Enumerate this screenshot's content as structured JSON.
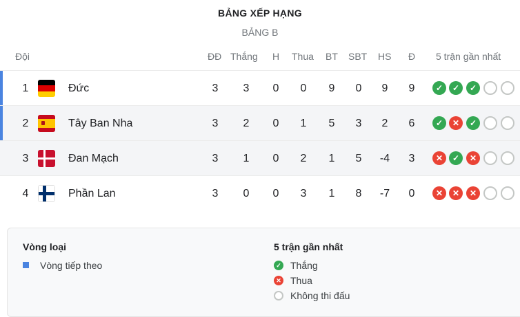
{
  "title": "BẢNG XẾP HẠNG",
  "group": "BẢNG B",
  "columns": {
    "team": "Đội",
    "played": "ĐĐ",
    "won": "Thắng",
    "drawn": "H",
    "lost": "Thua",
    "gf": "BT",
    "ga": "SBT",
    "gd": "HS",
    "pts": "Đ",
    "form": "5 trận gần nhất"
  },
  "rows": [
    {
      "pos": "1",
      "team": "Đức",
      "flag": "germany",
      "played": "3",
      "won": "3",
      "drawn": "0",
      "lost": "0",
      "gf": "9",
      "ga": "0",
      "gd": "9",
      "pts": "9",
      "form": [
        "W",
        "W",
        "W",
        "N",
        "N"
      ],
      "qualified": true
    },
    {
      "pos": "2",
      "team": "Tây Ban Nha",
      "flag": "spain",
      "played": "3",
      "won": "2",
      "drawn": "0",
      "lost": "1",
      "gf": "5",
      "ga": "3",
      "gd": "2",
      "pts": "6",
      "form": [
        "W",
        "L",
        "W",
        "N",
        "N"
      ],
      "qualified": true
    },
    {
      "pos": "3",
      "team": "Đan Mạch",
      "flag": "denmark",
      "played": "3",
      "won": "1",
      "drawn": "0",
      "lost": "2",
      "gf": "1",
      "ga": "5",
      "gd": "-4",
      "pts": "3",
      "form": [
        "L",
        "W",
        "L",
        "N",
        "N"
      ],
      "qualified": false
    },
    {
      "pos": "4",
      "team": "Phần Lan",
      "flag": "finland",
      "played": "3",
      "won": "0",
      "drawn": "0",
      "lost": "3",
      "gf": "1",
      "ga": "8",
      "gd": "-7",
      "pts": "0",
      "form": [
        "L",
        "L",
        "L",
        "N",
        "N"
      ],
      "qualified": false
    }
  ],
  "legend": {
    "qual_title": "Vòng loại",
    "qual_item": "Vòng tiếp theo",
    "form_title": "5 trận gần nhất",
    "win": "Thắng",
    "loss": "Thua",
    "none": "Không thi đấu"
  },
  "colors": {
    "qualified": "#4a84e0",
    "win": "#34a853",
    "loss": "#ea4335",
    "none": "#c4c7c5"
  }
}
